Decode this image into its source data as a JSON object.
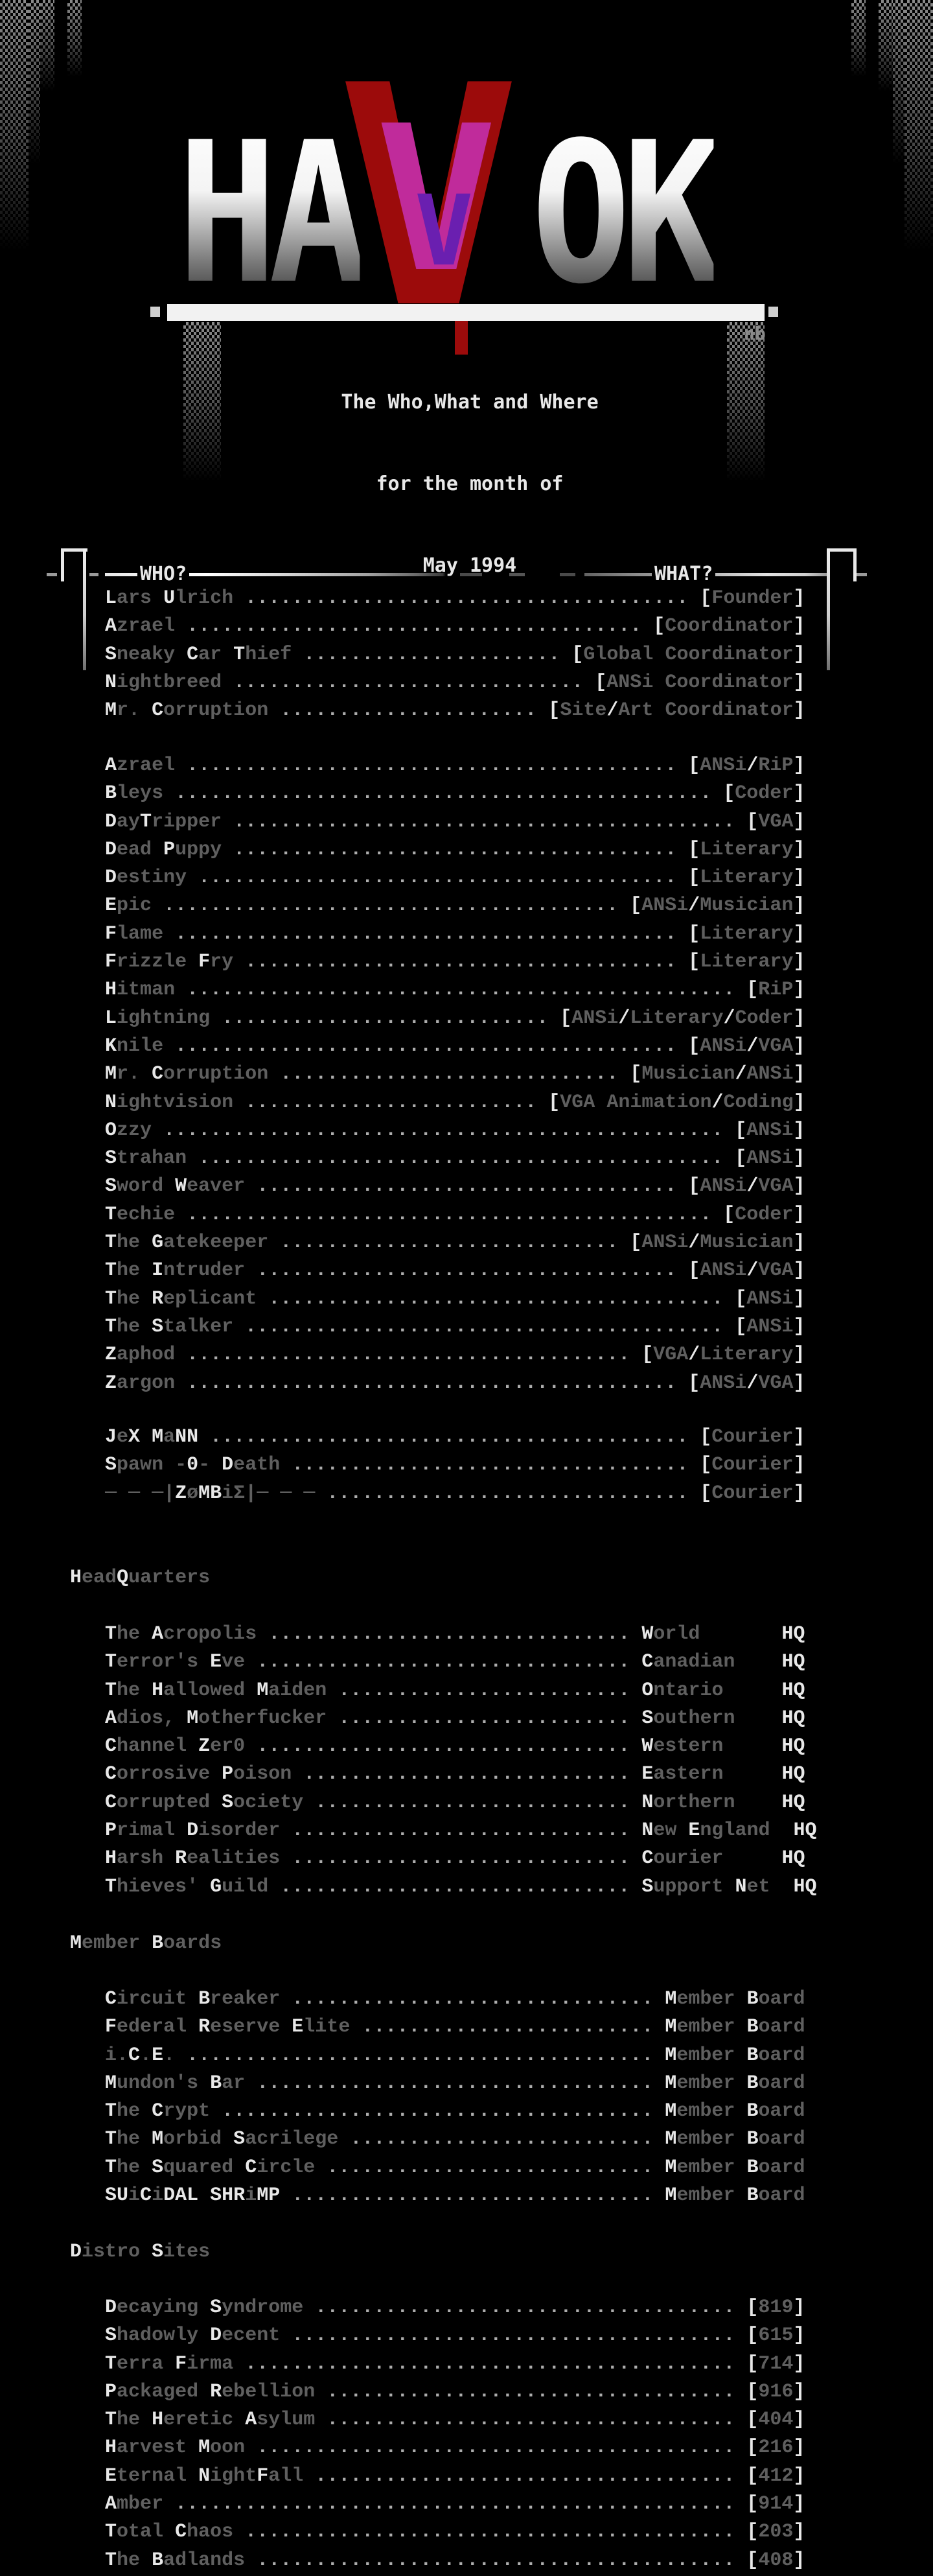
{
  "logo": {
    "left": "HA",
    "v": "V",
    "right": "OK",
    "signature": "nb",
    "tagline": [
      "The Who,What and Where",
      "for the month of",
      "May 1994"
    ]
  },
  "who_box": {
    "left_label": "WHO?",
    "right_label": "WHAT?"
  },
  "staff": [
    {
      "name": "Lars Ulrich",
      "role": "Founder"
    },
    {
      "name": "Azrael",
      "role": "Coordinator"
    },
    {
      "name": "Sneaky Car Thief",
      "role": "Global Coordinator"
    },
    {
      "name": "Nightbreed",
      "role": "ANSi Coordinator"
    },
    {
      "name": "Mr. Corruption",
      "role": "Site/Art Coordinator"
    }
  ],
  "artists": [
    {
      "name": "Azrael",
      "role": "ANSi/RiP"
    },
    {
      "name": "Bleys",
      "role": "Coder"
    },
    {
      "name": "DayTripper",
      "role": "VGA"
    },
    {
      "name": "Dead Puppy",
      "role": "Literary"
    },
    {
      "name": "Destiny",
      "role": "Literary"
    },
    {
      "name": "Epic",
      "role": "ANSi/Musician"
    },
    {
      "name": "Flame",
      "role": "Literary"
    },
    {
      "name": "Frizzle Fry",
      "role": "Literary"
    },
    {
      "name": "Hitman",
      "role": "RiP"
    },
    {
      "name": "Lightning",
      "role": "ANSi/Literary/Coder"
    },
    {
      "name": "Knile",
      "role": "ANSi/VGA"
    },
    {
      "name": "Mr. Corruption",
      "role": "Musician/ANSi"
    },
    {
      "name": "Nightvision",
      "role": "VGA Animation/Coding"
    },
    {
      "name": "Ozzy",
      "role": "ANSi"
    },
    {
      "name": "Strahan",
      "role": "ANSi"
    },
    {
      "name": "Sword Weaver",
      "role": "ANSi/VGA"
    },
    {
      "name": "Techie",
      "role": "Coder"
    },
    {
      "name": "The Gatekeeper",
      "role": "ANSi/Musician"
    },
    {
      "name": "The Intruder",
      "role": "ANSi/VGA"
    },
    {
      "name": "The Replicant",
      "role": "ANSi"
    },
    {
      "name": "The Stalker",
      "role": "ANSi"
    },
    {
      "name": "Zaphod",
      "role": "VGA/Literary"
    },
    {
      "name": "Zargon",
      "role": "ANSi/VGA"
    }
  ],
  "couriers": [
    {
      "name": "JeX MaNN",
      "role": "Courier"
    },
    {
      "name": "Spawn -0- Death",
      "role": "Courier"
    },
    {
      "name": "─ ─ ─|ZøMBiΣ|─ ─ ─",
      "role": "Courier"
    }
  ],
  "sections": {
    "headquarters": "HeadQuarters",
    "member_boards": "Member Boards",
    "distro_sites": "Distro Sites"
  },
  "headquarters": [
    {
      "name": "The Acropolis",
      "location": "World"
    },
    {
      "name": "Terror's Eve",
      "location": "Canadian"
    },
    {
      "name": "The Hallowed Maiden",
      "location": "Ontario"
    },
    {
      "name": "Adios, Motherfucker",
      "location": "Southern"
    },
    {
      "name": "Channel Zer0",
      "location": "Western"
    },
    {
      "name": "Corrosive Poison",
      "location": "Eastern"
    },
    {
      "name": "Corrupted Society",
      "location": "Northern"
    },
    {
      "name": "Primal Disorder",
      "location": "New England"
    },
    {
      "name": "Harsh Realities",
      "location": "Courier"
    },
    {
      "name": "Thieves' Guild",
      "location": "Support Net"
    }
  ],
  "hq_suffix": "HQ",
  "member_board_label": "Member Board",
  "member_boards": [
    {
      "name": "Circuit Breaker"
    },
    {
      "name": "Federal Reserve Elite"
    },
    {
      "name": "i.C.E."
    },
    {
      "name": "Mundon's Bar"
    },
    {
      "name": "The Crypt"
    },
    {
      "name": "The Morbid Sacrilege"
    },
    {
      "name": "The Squared Circle"
    },
    {
      "name": "SUiCiDAL SHRiMP"
    }
  ],
  "distro_sites": [
    {
      "name": "Decaying Syndrome",
      "node": "819"
    },
    {
      "name": "Shadowly Decent",
      "node": "615"
    },
    {
      "name": "Terra Firma",
      "node": "714"
    },
    {
      "name": "Packaged Rebellion",
      "node": "916"
    },
    {
      "name": "The Heretic Asylum",
      "node": "404"
    },
    {
      "name": "Harvest Moon",
      "node": "216"
    },
    {
      "name": "Eternal NightFall",
      "node": "412"
    },
    {
      "name": "Amber",
      "node": "914"
    },
    {
      "name": "Total Chaos",
      "node": "203"
    },
    {
      "name": "The Badlands",
      "node": "408"
    }
  ],
  "colors": {
    "bright": "#e8e8e8",
    "dim": "#5f5f5f",
    "dots": "#adadad",
    "red": "#9c0b0b",
    "magenta": "#c02b9b",
    "purple": "#6a1fb0"
  }
}
